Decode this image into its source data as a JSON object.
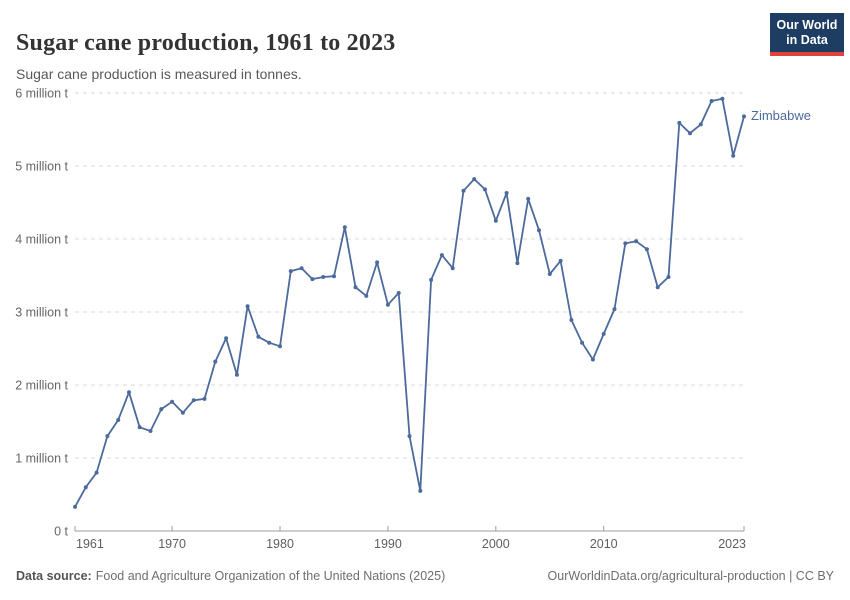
{
  "logo": {
    "line1": "Our World",
    "line2": "in Data"
  },
  "chart_data": {
    "type": "line",
    "title": "Sugar cane production, 1961 to 2023",
    "subtitle": "Sugar cane production is measured in tonnes.",
    "unit": "million tonnes",
    "xlabel": "",
    "ylabel": "",
    "ylim": [
      0,
      6
    ],
    "xlim": [
      1961,
      2023
    ],
    "grid": "horizontal-dashed",
    "legend_position": "end-of-line-label",
    "line_color": "#4c6a9c",
    "yticks": [
      {
        "value": 0,
        "label": "0 t"
      },
      {
        "value": 1,
        "label": "1 million t"
      },
      {
        "value": 2,
        "label": "2 million t"
      },
      {
        "value": 3,
        "label": "3 million t"
      },
      {
        "value": 4,
        "label": "4 million t"
      },
      {
        "value": 5,
        "label": "5 million t"
      },
      {
        "value": 6,
        "label": "6 million t"
      }
    ],
    "xticks": [
      {
        "year": 1961,
        "label": "1961"
      },
      {
        "year": 1970,
        "label": "1970"
      },
      {
        "year": 1980,
        "label": "1980"
      },
      {
        "year": 1990,
        "label": "1990"
      },
      {
        "year": 2000,
        "label": "2000"
      },
      {
        "year": 2010,
        "label": "2010"
      },
      {
        "year": 2023,
        "label": "2023"
      }
    ],
    "series": [
      {
        "name": "Zimbabwe",
        "color": "#4c6a9c",
        "years": [
          1961,
          1962,
          1963,
          1964,
          1965,
          1966,
          1967,
          1968,
          1969,
          1970,
          1971,
          1972,
          1973,
          1974,
          1975,
          1976,
          1977,
          1978,
          1979,
          1980,
          1981,
          1982,
          1983,
          1984,
          1985,
          1986,
          1987,
          1988,
          1989,
          1990,
          1991,
          1992,
          1993,
          1994,
          1995,
          1996,
          1997,
          1998,
          1999,
          2000,
          2001,
          2002,
          2003,
          2004,
          2005,
          2006,
          2007,
          2008,
          2009,
          2010,
          2011,
          2012,
          2013,
          2014,
          2015,
          2016,
          2017,
          2018,
          2019,
          2020,
          2021,
          2022,
          2023
        ],
        "values_million_t": [
          0.33,
          0.6,
          0.8,
          1.3,
          1.52,
          1.9,
          1.42,
          1.37,
          1.67,
          1.77,
          1.62,
          1.79,
          1.81,
          2.32,
          2.64,
          2.14,
          3.08,
          2.66,
          2.58,
          2.53,
          3.56,
          3.6,
          3.45,
          3.48,
          3.49,
          4.16,
          3.34,
          3.22,
          3.68,
          3.1,
          3.26,
          1.3,
          0.55,
          3.44,
          3.78,
          3.6,
          4.66,
          4.82,
          4.68,
          4.25,
          4.63,
          3.67,
          4.55,
          4.12,
          3.52,
          3.7,
          2.89,
          2.58,
          2.35,
          2.7,
          3.04,
          3.94,
          3.97,
          3.86,
          3.34,
          3.48,
          5.59,
          5.45,
          5.57,
          5.89,
          5.92,
          5.14,
          5.68
        ]
      }
    ]
  },
  "footer": {
    "source_label": "Data source:",
    "source_text": "Food and Agriculture Organization of the United Nations (2025)",
    "credit": "OurWorldinData.org/agricultural-production | CC BY"
  }
}
